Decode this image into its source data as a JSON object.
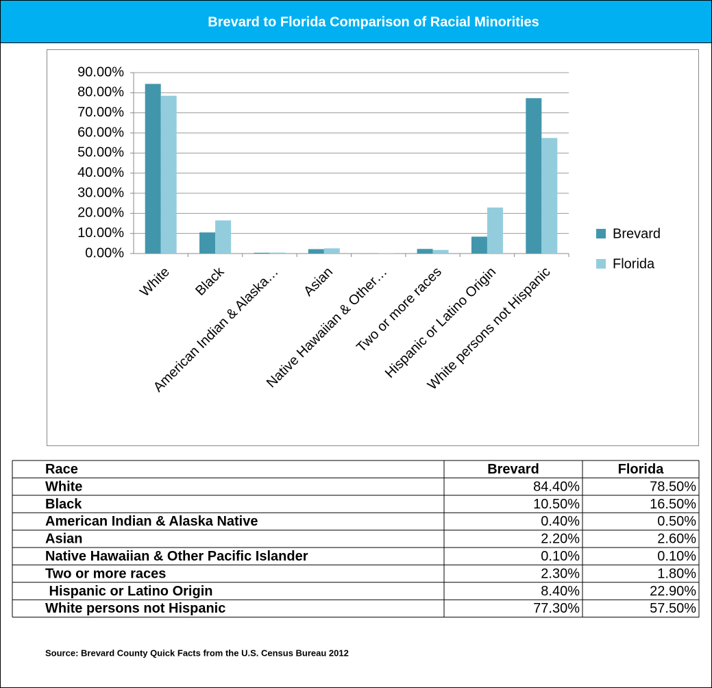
{
  "header": {
    "title": "Brevard to Florida Comparison of Racial Minorities"
  },
  "chart_data": {
    "type": "bar",
    "categories": [
      "White",
      "Black",
      "American Indian & Alaska…",
      "Asian",
      "Native Hawaiian & Other…",
      "Two or more races",
      "Hispanic or Latino Origin",
      "White persons not Hispanic"
    ],
    "series": [
      {
        "name": "Brevard",
        "color": "#4196ac",
        "values": [
          84.4,
          10.5,
          0.4,
          2.2,
          0.1,
          2.3,
          8.4,
          77.3
        ]
      },
      {
        "name": "Florida",
        "color": "#93cddd",
        "values": [
          78.5,
          16.5,
          0.5,
          2.6,
          0.1,
          1.8,
          22.9,
          57.5
        ]
      }
    ],
    "ylim": [
      0,
      90
    ],
    "yticks": [
      {
        "value": 0,
        "label": "0.00%"
      },
      {
        "value": 10,
        "label": "10.00%"
      },
      {
        "value": 20,
        "label": "20.00%"
      },
      {
        "value": 30,
        "label": "30.00%"
      },
      {
        "value": 40,
        "label": "40.00%"
      },
      {
        "value": 50,
        "label": "50.00%"
      },
      {
        "value": 60,
        "label": "60.00%"
      },
      {
        "value": 70,
        "label": "70.00%"
      },
      {
        "value": 80,
        "label": "80.00%"
      },
      {
        "value": 90,
        "label": "90.00%"
      }
    ],
    "grid": true,
    "legend": "right"
  },
  "table": {
    "header": [
      "Race",
      "Brevard",
      "Florida"
    ],
    "rows": [
      [
        "White",
        "84.40%",
        "78.50%"
      ],
      [
        "Black",
        "10.50%",
        "16.50%"
      ],
      [
        "American Indian & Alaska Native",
        "0.40%",
        "0.50%"
      ],
      [
        "Asian",
        "2.20%",
        "2.60%"
      ],
      [
        "Native Hawaiian & Other Pacific Islander",
        "0.10%",
        "0.10%"
      ],
      [
        "Two or more races",
        "2.30%",
        "1.80%"
      ],
      [
        " Hispanic or Latino Origin",
        "8.40%",
        "22.90%"
      ],
      [
        "White persons not Hispanic",
        "77.30%",
        "57.50%"
      ]
    ]
  },
  "footer": {
    "source": "Source: Brevard County Quick Facts from the U.S. Census Bureau 2012"
  }
}
